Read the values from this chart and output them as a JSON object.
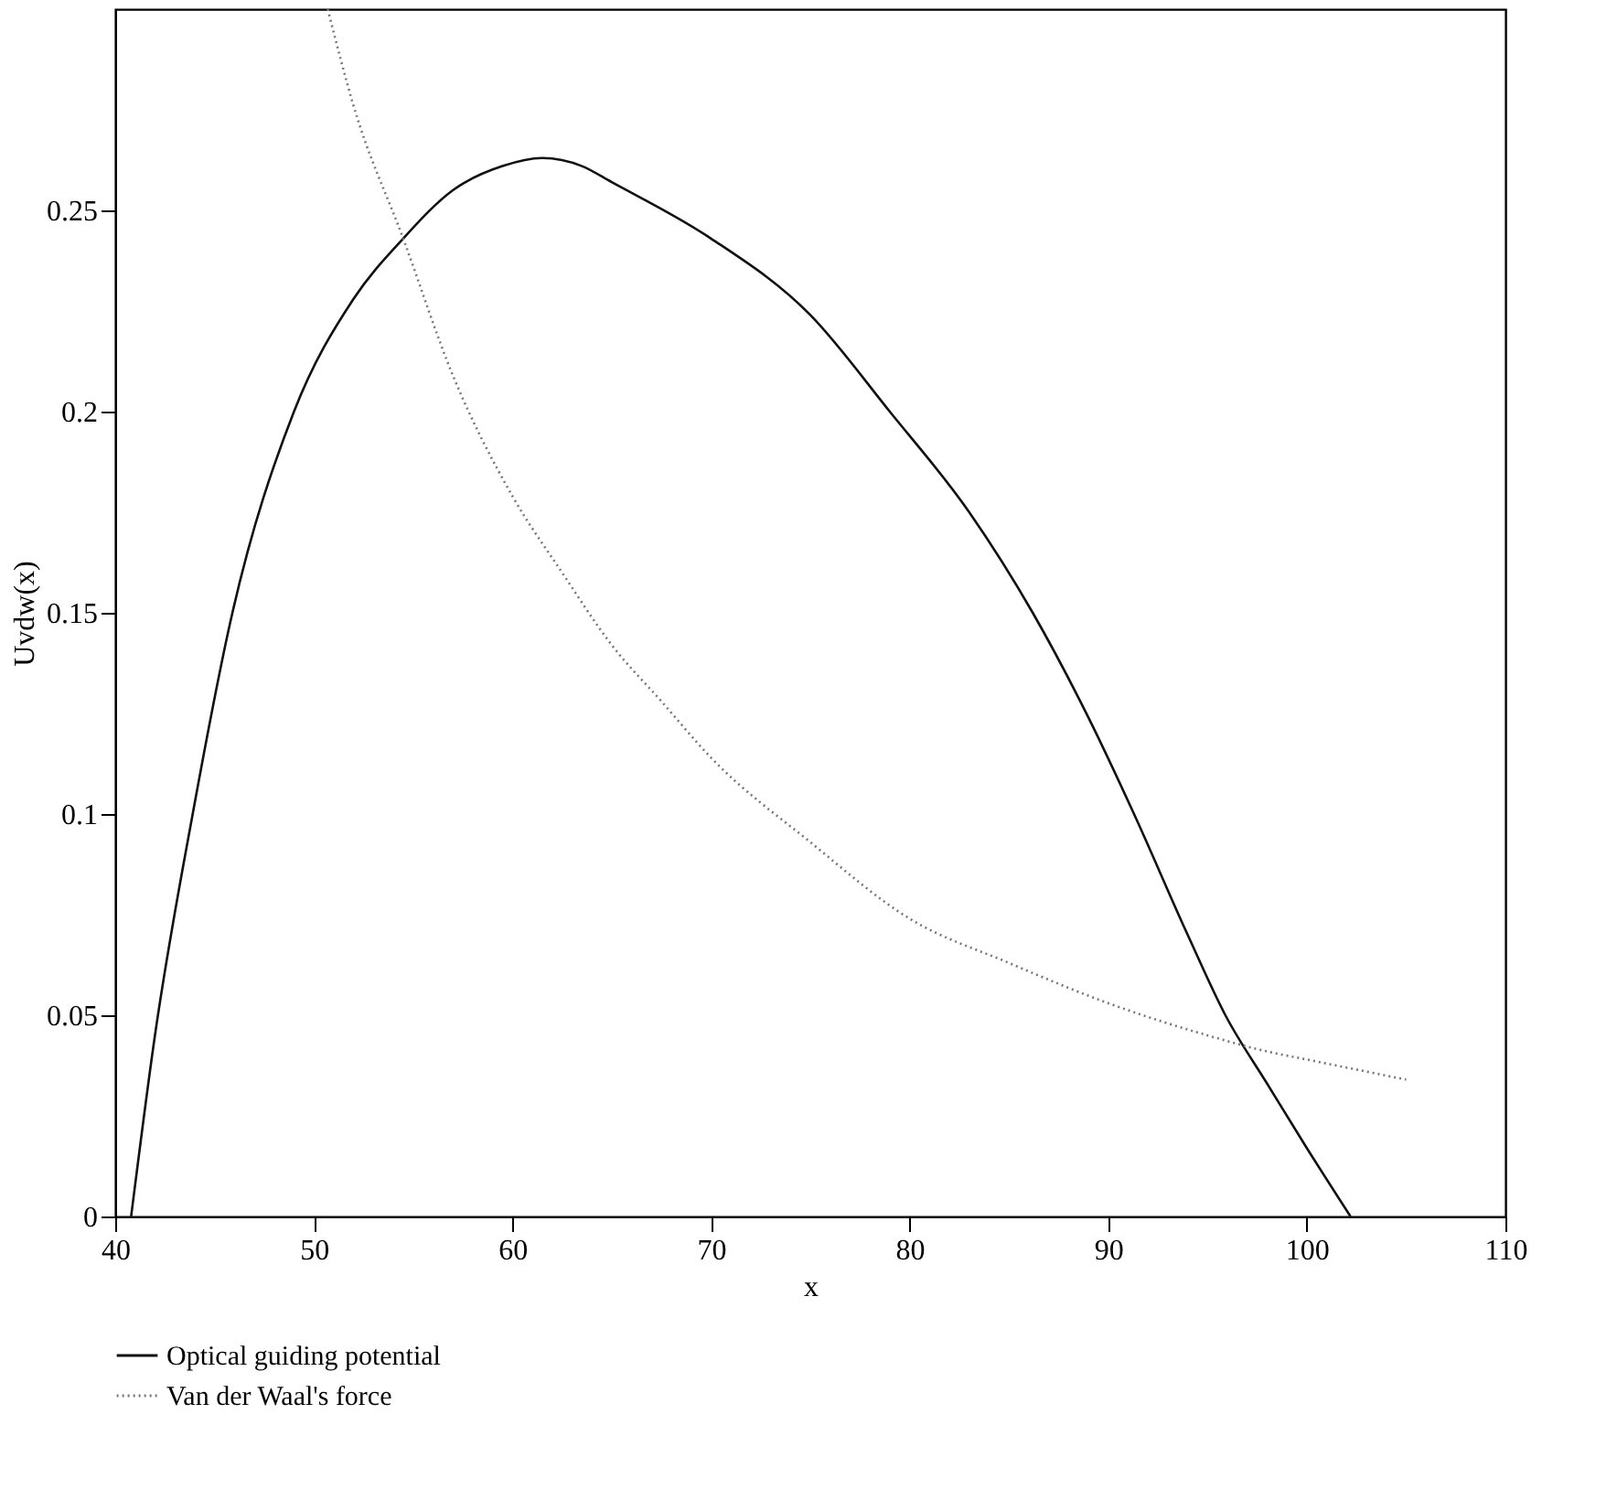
{
  "chart_data": {
    "type": "line",
    "xlabel": "x",
    "ylabel": "Uvdw(x)",
    "xlim": [
      40,
      110
    ],
    "xticks": [
      40,
      50,
      60,
      70,
      80,
      90,
      100,
      110
    ],
    "ylim": [
      0,
      0.3
    ],
    "yticks": [
      0,
      0.05,
      0.1,
      0.15,
      0.2,
      0.25
    ],
    "grid": false,
    "legend": "bottom",
    "series": [
      {
        "name": "Optical guiding potential",
        "color": "#111111",
        "line_style": "solid",
        "x": [
          40.8,
          42,
          43.9,
          45.9,
          49,
          52,
          54.5,
          57,
          59.5,
          61.5,
          63.5,
          65,
          70,
          75,
          79,
          83,
          86.2,
          89,
          91.3,
          94,
          95.9,
          98,
          100,
          102.2
        ],
        "values": [
          0,
          0.045,
          0.1,
          0.15,
          0.2,
          0.228,
          0.243,
          0.255,
          0.261,
          0.263,
          0.261,
          0.257,
          0.243,
          0.224,
          0.2,
          0.175,
          0.15,
          0.124,
          0.1,
          0.07,
          0.05,
          0.033,
          0.017,
          0
        ]
      },
      {
        "name": "Van der Waal's force",
        "color": "#777777",
        "line_style": "dotted",
        "x": [
          50.7,
          52,
          54.5,
          57,
          60,
          62.5,
          65,
          67.5,
          70,
          75,
          80,
          85,
          90,
          95,
          98,
          100,
          105
        ],
        "values": [
          0.3,
          0.276,
          0.243,
          0.209,
          0.179,
          0.16,
          0.142,
          0.128,
          0.114,
          0.093,
          0.074,
          0.063,
          0.053,
          0.045,
          0.041,
          0.039,
          0.034
        ]
      }
    ]
  }
}
